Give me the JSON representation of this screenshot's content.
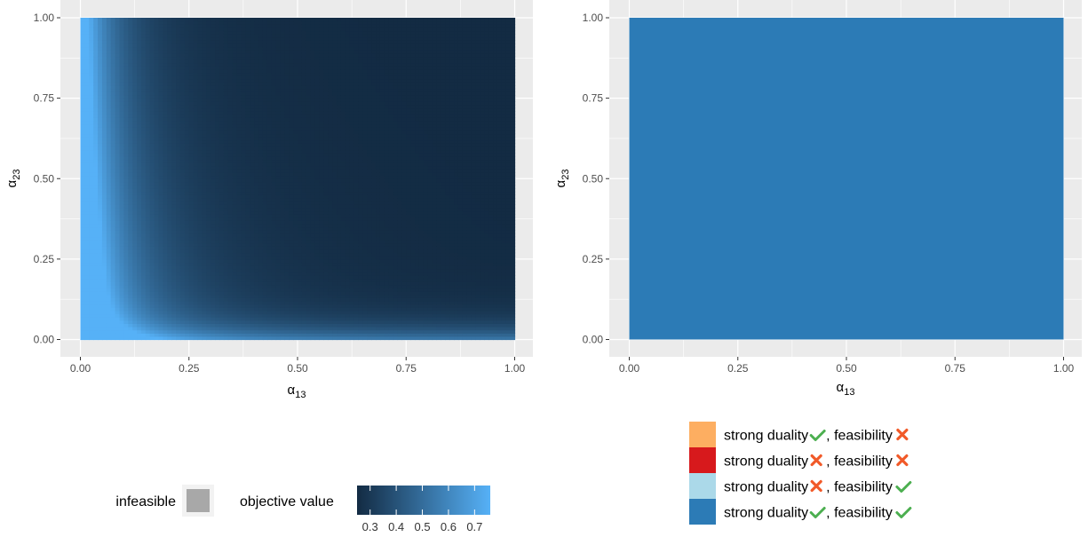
{
  "colors": {
    "panel_bg": "#ebebeb",
    "grid": "#ffffff",
    "tick_text": "#4d4d4d",
    "objective_low": "#132b43",
    "objective_high": "#56b1f7",
    "infeasible": "#a8a8a8",
    "check": "#4caf50",
    "cross": "#f15a29"
  },
  "chart_data": [
    {
      "type": "heatmap",
      "x": {
        "label": "α",
        "label_sub": "13",
        "ticks": [
          "0.00",
          "0.25",
          "0.50",
          "0.75",
          "1.00"
        ],
        "range": [
          0,
          1
        ]
      },
      "y": {
        "label": "α",
        "label_sub": "23",
        "ticks": [
          "0.00",
          "0.25",
          "0.50",
          "0.75",
          "1.00"
        ],
        "range": [
          0,
          1
        ]
      },
      "fill": "objective value",
      "value_range": [
        0.25,
        0.76
      ],
      "model": "objective value ≈ 0.25 + 0.51·exp(-(5·α13 + α23·(1 + 3·α13 − 1.5·α13²)))·(1 − 0.6·α13·α23) + 0.45·exp(-14·α13) + 0.30·exp(-22·α23)",
      "legend": {
        "infeasible_label": "infeasible",
        "colorbar_title": "objective value",
        "colorbar_ticks": [
          "0.3",
          "0.4",
          "0.5",
          "0.6",
          "0.7"
        ],
        "placement": "bottom"
      }
    },
    {
      "type": "heatmap",
      "x": {
        "label": "α",
        "label_sub": "13",
        "ticks": [
          "0.00",
          "0.25",
          "0.50",
          "0.75",
          "1.00"
        ],
        "range": [
          0,
          1
        ]
      },
      "y": {
        "label": "α",
        "label_sub": "23",
        "ticks": [
          "0.00",
          "0.25",
          "0.50",
          "0.75",
          "1.00"
        ],
        "range": [
          0,
          1
        ]
      },
      "fill_uniform": "strong duality ✓, feasibility ✓",
      "legend": {
        "placement": "bottom",
        "items": [
          {
            "color": "#fdae61",
            "duality_label": "strong duality",
            "duality_mark": "check",
            "feas_label": ", feasibility",
            "feas_mark": "cross"
          },
          {
            "color": "#d7191c",
            "duality_label": "strong duality",
            "duality_mark": "cross",
            "feas_label": ", feasibility",
            "feas_mark": "cross"
          },
          {
            "color": "#abd9e9",
            "duality_label": "strong duality",
            "duality_mark": "cross",
            "feas_label": ", feasibility",
            "feas_mark": "check"
          },
          {
            "color": "#2c7bb6",
            "duality_label": "strong duality",
            "duality_mark": "check",
            "feas_label": ", feasibility",
            "feas_mark": "check"
          }
        ]
      }
    }
  ]
}
